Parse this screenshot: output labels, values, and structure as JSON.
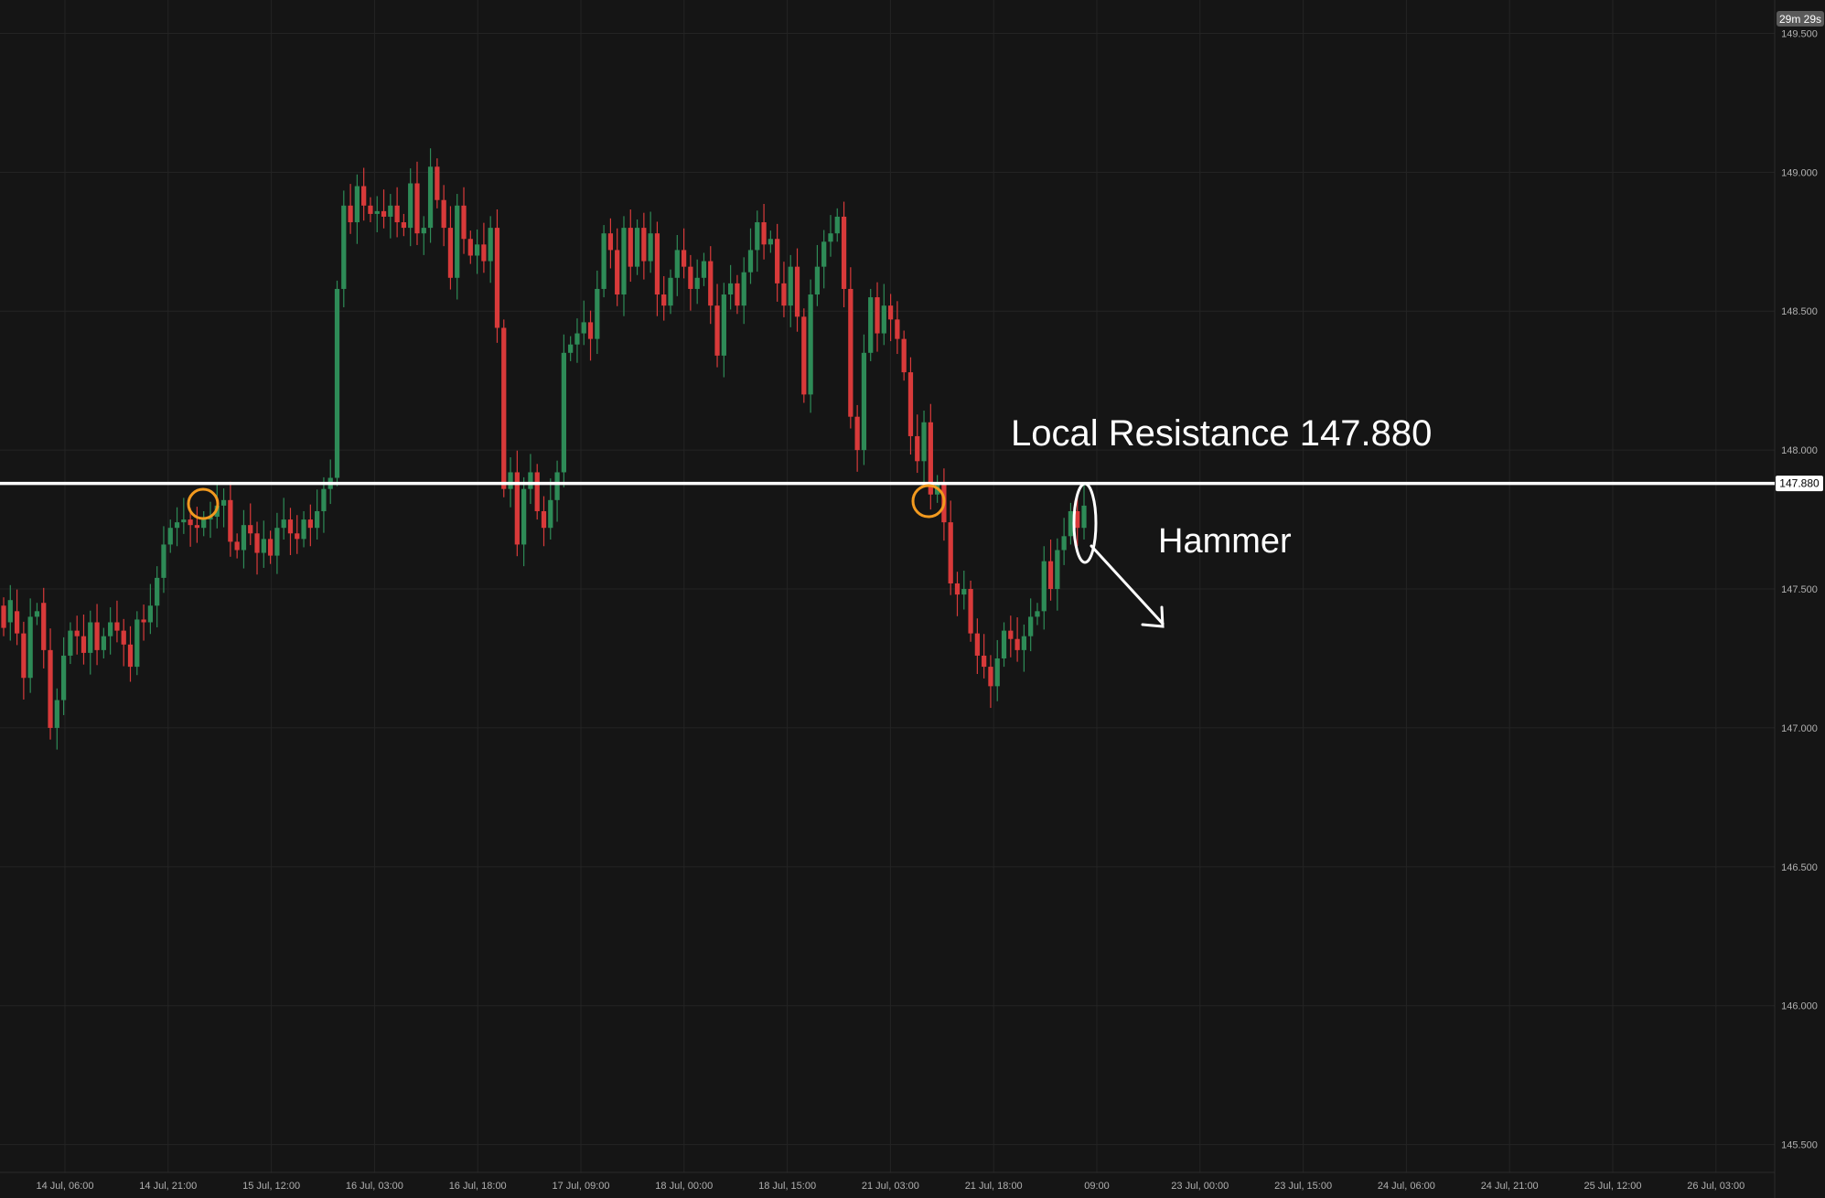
{
  "timer_badge": "29m 29s",
  "annotations": {
    "resistance_label": "Local Resistance 147.880",
    "hammer_label": "Hammer"
  },
  "colors": {
    "background": "#151515",
    "grid": "#242424",
    "bull": "#2e8b57",
    "bear": "#d83a3a",
    "resistance_line": "#ffffff",
    "circle_highlight": "#f29a1f",
    "text": "#ffffff",
    "axis_text": "#b0b0b0"
  },
  "chart_data": {
    "type": "candlestick",
    "title": "",
    "xlabel": "",
    "ylabel": "",
    "ylim": [
      145.4,
      149.62
    ],
    "y_ticks": [
      "149.500",
      "149.000",
      "148.500",
      "148.000",
      "147.500",
      "147.000",
      "146.500",
      "146.000",
      "145.500"
    ],
    "x_ticks": [
      "14 Jul, 06:00",
      "14 Jul, 21:00",
      "15 Jul, 12:00",
      "16 Jul, 03:00",
      "16 Jul, 18:00",
      "17 Jul, 09:00",
      "18 Jul, 00:00",
      "18 Jul, 15:00",
      "21 Jul, 03:00",
      "21 Jul, 18:00",
      "09:00",
      "23 Jul, 00:00",
      "23 Jul, 15:00",
      "24 Jul, 06:00",
      "24 Jul, 21:00",
      "25 Jul, 12:00",
      "26 Jul, 03:00"
    ],
    "resistance": {
      "value": 147.88,
      "label": "147.880"
    },
    "candles": [
      [
        147.44,
        147.36
      ],
      [
        147.38,
        147.46
      ],
      [
        147.42,
        147.34
      ],
      [
        147.34,
        147.18
      ],
      [
        147.18,
        147.4
      ],
      [
        147.4,
        147.42
      ],
      [
        147.45,
        147.28
      ],
      [
        147.28,
        147.0
      ],
      [
        147.0,
        147.1
      ],
      [
        147.1,
        147.26
      ],
      [
        147.26,
        147.35
      ],
      [
        147.35,
        147.33
      ],
      [
        147.33,
        147.27
      ],
      [
        147.27,
        147.38
      ],
      [
        147.38,
        147.28
      ],
      [
        147.28,
        147.33
      ],
      [
        147.33,
        147.38
      ],
      [
        147.38,
        147.35
      ],
      [
        147.35,
        147.3
      ],
      [
        147.3,
        147.22
      ],
      [
        147.22,
        147.39
      ],
      [
        147.39,
        147.38
      ],
      [
        147.38,
        147.44
      ],
      [
        147.44,
        147.54
      ],
      [
        147.54,
        147.66
      ],
      [
        147.66,
        147.72
      ],
      [
        147.72,
        147.74
      ],
      [
        147.74,
        147.75
      ],
      [
        147.75,
        147.73
      ],
      [
        147.73,
        147.72
      ],
      [
        147.72,
        147.75
      ],
      [
        147.75,
        147.76
      ],
      [
        147.76,
        147.8
      ],
      [
        147.8,
        147.82
      ],
      [
        147.82,
        147.67
      ],
      [
        147.67,
        147.64
      ],
      [
        147.64,
        147.73
      ],
      [
        147.73,
        147.7
      ],
      [
        147.7,
        147.63
      ],
      [
        147.63,
        147.68
      ],
      [
        147.68,
        147.62
      ],
      [
        147.62,
        147.72
      ],
      [
        147.72,
        147.75
      ],
      [
        147.75,
        147.7
      ],
      [
        147.7,
        147.68
      ],
      [
        147.68,
        147.75
      ],
      [
        147.75,
        147.72
      ],
      [
        147.72,
        147.78
      ],
      [
        147.78,
        147.86
      ],
      [
        147.86,
        147.9
      ],
      [
        147.9,
        148.58
      ],
      [
        148.58,
        148.88
      ],
      [
        148.88,
        148.82
      ],
      [
        148.82,
        148.95
      ],
      [
        148.95,
        148.88
      ],
      [
        148.88,
        148.85
      ],
      [
        148.85,
        148.86
      ],
      [
        148.86,
        148.84
      ],
      [
        148.84,
        148.88
      ],
      [
        148.88,
        148.82
      ],
      [
        148.82,
        148.8
      ],
      [
        148.8,
        148.96
      ],
      [
        148.96,
        148.78
      ],
      [
        148.78,
        148.8
      ],
      [
        148.8,
        149.02
      ],
      [
        149.02,
        148.9
      ],
      [
        148.9,
        148.8
      ],
      [
        148.8,
        148.62
      ],
      [
        148.62,
        148.88
      ],
      [
        148.88,
        148.76
      ],
      [
        148.76,
        148.7
      ],
      [
        148.7,
        148.74
      ],
      [
        148.74,
        148.68
      ],
      [
        148.68,
        148.8
      ],
      [
        148.8,
        148.44
      ],
      [
        148.44,
        147.86
      ],
      [
        147.86,
        147.92
      ],
      [
        147.92,
        147.66
      ],
      [
        147.66,
        147.86
      ],
      [
        147.86,
        147.92
      ],
      [
        147.92,
        147.78
      ],
      [
        147.78,
        147.72
      ],
      [
        147.72,
        147.82
      ],
      [
        147.82,
        147.92
      ],
      [
        147.92,
        148.35
      ],
      [
        148.35,
        148.38
      ],
      [
        148.38,
        148.42
      ],
      [
        148.42,
        148.46
      ],
      [
        148.46,
        148.4
      ],
      [
        148.4,
        148.58
      ],
      [
        148.58,
        148.78
      ],
      [
        148.78,
        148.72
      ],
      [
        148.72,
        148.56
      ],
      [
        148.56,
        148.8
      ],
      [
        148.8,
        148.66
      ],
      [
        148.66,
        148.8
      ],
      [
        148.8,
        148.68
      ],
      [
        148.68,
        148.78
      ],
      [
        148.78,
        148.56
      ],
      [
        148.56,
        148.52
      ],
      [
        148.52,
        148.62
      ],
      [
        148.62,
        148.72
      ],
      [
        148.72,
        148.66
      ],
      [
        148.66,
        148.58
      ],
      [
        148.58,
        148.62
      ],
      [
        148.62,
        148.68
      ],
      [
        148.68,
        148.52
      ],
      [
        148.52,
        148.34
      ],
      [
        148.34,
        148.56
      ],
      [
        148.56,
        148.6
      ],
      [
        148.6,
        148.52
      ],
      [
        148.52,
        148.64
      ],
      [
        148.64,
        148.72
      ],
      [
        148.72,
        148.82
      ],
      [
        148.82,
        148.74
      ],
      [
        148.74,
        148.76
      ],
      [
        148.76,
        148.6
      ],
      [
        148.6,
        148.52
      ],
      [
        148.52,
        148.66
      ],
      [
        148.66,
        148.48
      ],
      [
        148.48,
        148.2
      ],
      [
        148.2,
        148.56
      ],
      [
        148.56,
        148.66
      ],
      [
        148.66,
        148.75
      ],
      [
        148.75,
        148.78
      ],
      [
        148.78,
        148.84
      ],
      [
        148.84,
        148.58
      ],
      [
        148.58,
        148.12
      ],
      [
        148.12,
        148.0
      ],
      [
        148.0,
        148.35
      ],
      [
        148.35,
        148.55
      ],
      [
        148.55,
        148.42
      ],
      [
        148.42,
        148.52
      ],
      [
        148.52,
        148.47
      ],
      [
        148.47,
        148.4
      ],
      [
        148.4,
        148.28
      ],
      [
        148.28,
        148.05
      ],
      [
        148.05,
        147.96
      ],
      [
        147.96,
        148.1
      ],
      [
        148.1,
        147.84
      ],
      [
        147.84,
        147.88
      ],
      [
        147.88,
        147.74
      ],
      [
        147.74,
        147.52
      ],
      [
        147.52,
        147.48
      ],
      [
        147.48,
        147.5
      ],
      [
        147.5,
        147.34
      ],
      [
        147.34,
        147.26
      ],
      [
        147.26,
        147.22
      ],
      [
        147.22,
        147.15
      ],
      [
        147.15,
        147.25
      ],
      [
        147.25,
        147.35
      ],
      [
        147.35,
        147.32
      ],
      [
        147.32,
        147.28
      ],
      [
        147.28,
        147.33
      ],
      [
        147.33,
        147.4
      ],
      [
        147.4,
        147.42
      ],
      [
        147.42,
        147.6
      ],
      [
        147.6,
        147.5
      ],
      [
        147.5,
        147.64
      ],
      [
        147.64,
        147.69
      ],
      [
        147.69,
        147.78
      ],
      [
        147.78,
        147.72
      ],
      [
        147.72,
        147.8
      ]
    ]
  }
}
